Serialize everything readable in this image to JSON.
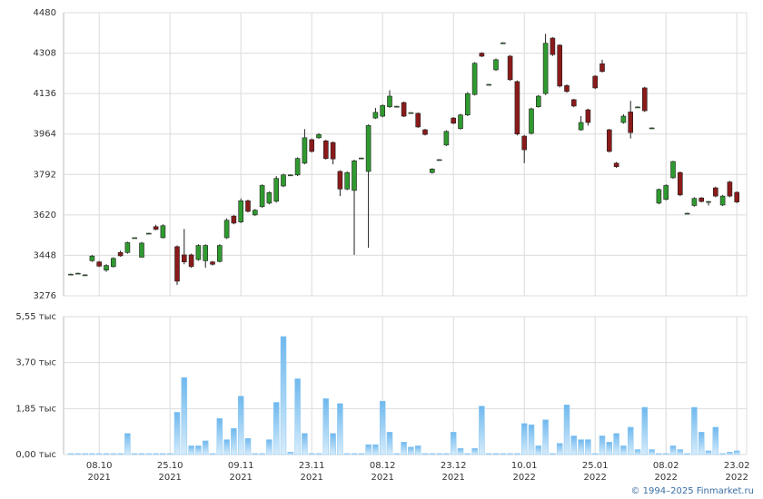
{
  "chart_data": [
    {
      "type": "candlestick",
      "up_color": "#2f9a2f",
      "down_color": "#8b1a1a",
      "ylim": [
        3276,
        4480
      ],
      "yticks": [
        3276,
        3448,
        3620,
        3792,
        3964,
        4136,
        4308,
        4480
      ],
      "grid": true,
      "open": [
        3368,
        3372,
        3365,
        3425,
        3420,
        3385,
        3400,
        3460,
        3460,
        3523,
        3440,
        3542,
        3570,
        3523,
        null,
        3485,
        3450,
        3450,
        3430,
        3425,
        3420,
        3422,
        3523,
        3615,
        3590,
        3680,
        3620,
        3655,
        3670,
        3678,
        3743,
        3790,
        3790,
        3840,
        3940,
        3948,
        3935,
        3928,
        3805,
        3730,
        3724,
        3862,
        3805,
        4032,
        4040,
        4080,
        4082,
        4098,
        4055,
        4052,
        3982,
        3800,
        3855,
        3917,
        4032,
        3987,
        4045,
        4132,
        4308,
        4175,
        4237,
        4352,
        4295,
        4187,
        3955,
        3967,
        4080,
        4136,
        4372,
        4342,
        4170,
        4110,
        3982,
        4067,
        4210,
        4263,
        3982,
        3840,
        4013,
        4058,
        4079,
        4160,
        3990,
        3670,
        3686,
        3778,
        3800,
        3627,
        3660,
        3692,
        3677,
        3735,
        3662,
        3760,
        3716
      ],
      "high": [
        3370,
        3374,
        3367,
        3450,
        3424,
        3410,
        3440,
        3468,
        3506,
        3525,
        3505,
        3544,
        3578,
        3580,
        null,
        3490,
        3560,
        3455,
        3495,
        3495,
        3424,
        3495,
        3605,
        3620,
        3690,
        3685,
        3645,
        3750,
        3720,
        3785,
        3795,
        3792,
        3865,
        3985,
        3945,
        3968,
        3940,
        3932,
        3810,
        3805,
        3855,
        3864,
        4005,
        4075,
        4090,
        4150,
        4084,
        4102,
        4057,
        4056,
        3986,
        3819,
        3857,
        3980,
        4036,
        4050,
        4142,
        4270,
        4312,
        4177,
        4285,
        4354,
        4300,
        4192,
        3960,
        4076,
        4130,
        4390,
        4376,
        4346,
        4175,
        4114,
        4040,
        4072,
        4214,
        4280,
        3986,
        3845,
        4048,
        4105,
        4081,
        4165,
        3992,
        3732,
        3750,
        3850,
        3805,
        3629,
        3695,
        3696,
        3679,
        3740,
        3705,
        3765,
        3720
      ],
      "low": [
        3366,
        3370,
        3363,
        3420,
        3398,
        3378,
        3396,
        3442,
        3455,
        3521,
        3438,
        3540,
        3555,
        3520,
        null,
        3322,
        3410,
        3395,
        3425,
        3395,
        3405,
        3418,
        3518,
        3580,
        3585,
        3630,
        3615,
        3650,
        3665,
        3672,
        3738,
        3788,
        3785,
        3835,
        3885,
        3944,
        3855,
        3835,
        3700,
        3725,
        3450,
        3860,
        3480,
        4028,
        4035,
        4075,
        4080,
        4036,
        4053,
        3990,
        3958,
        3796,
        3853,
        3913,
        4006,
        3983,
        4040,
        4128,
        4291,
        4173,
        4233,
        4350,
        4190,
        3958,
        3840,
        3962,
        4076,
        4130,
        4296,
        4162,
        4140,
        4078,
        3978,
        4000,
        4155,
        4226,
        3885,
        3820,
        4008,
        3945,
        4077,
        4058,
        3988,
        3665,
        3682,
        3774,
        3700,
        3625,
        3655,
        3673,
        3660,
        3695,
        3658,
        3695,
        3670
      ],
      "close": [
        3368,
        3372,
        3365,
        3445,
        3402,
        3405,
        3435,
        3446,
        3502,
        3523,
        3500,
        3542,
        3558,
        3574,
        null,
        3338,
        3420,
        3400,
        3490,
        3490,
        3410,
        3490,
        3597,
        3585,
        3680,
        3635,
        3640,
        3745,
        3715,
        3775,
        3790,
        3790,
        3860,
        3948,
        3890,
        3962,
        3860,
        3858,
        3730,
        3800,
        3850,
        3862,
        4000,
        4056,
        4085,
        4125,
        4082,
        4040,
        4055,
        3994,
        3962,
        3815,
        3855,
        3975,
        4010,
        4045,
        4136,
        4265,
        4295,
        4175,
        4280,
        4352,
        4195,
        3964,
        3897,
        4071,
        4125,
        4350,
        4302,
        4168,
        4145,
        4083,
        4013,
        4013,
        4160,
        4230,
        3890,
        3825,
        4040,
        3970,
        4079,
        4063,
        3990,
        3728,
        3745,
        3847,
        3705,
        3627,
        3690,
        3677,
        3677,
        3700,
        3700,
        3700,
        3675
      ]
    },
    {
      "type": "bar",
      "color": "#8cc8f2",
      "ylim": [
        0,
        5.55
      ],
      "yticks": [
        {
          "value": 0,
          "label": "0,00 тыс"
        },
        {
          "value": 1.85,
          "label": "1,85 тыс"
        },
        {
          "value": 3.7,
          "label": "3,70 тыс"
        },
        {
          "value": 5.55,
          "label": "5,55 тыс"
        }
      ],
      "grid": true,
      "categories": [
        null,
        null,
        null,
        null,
        {
          "date": "08.10",
          "year": "2021"
        },
        null,
        null,
        null,
        null,
        null,
        null,
        null,
        null,
        null,
        {
          "date": "25.10",
          "year": "2021"
        },
        null,
        null,
        null,
        null,
        null,
        null,
        null,
        null,
        null,
        {
          "date": "09.11",
          "year": "2021"
        },
        null,
        null,
        null,
        null,
        null,
        null,
        null,
        null,
        null,
        {
          "date": "23.11",
          "year": "2021"
        },
        null,
        null,
        null,
        null,
        null,
        null,
        null,
        null,
        null,
        {
          "date": "08.12",
          "year": "2021"
        },
        null,
        null,
        null,
        null,
        null,
        null,
        null,
        null,
        null,
        {
          "date": "23.12",
          "year": "2021"
        },
        null,
        null,
        null,
        null,
        null,
        null,
        null,
        null,
        null,
        {
          "date": "10.01",
          "year": "2022"
        },
        null,
        null,
        null,
        null,
        null,
        null,
        null,
        null,
        null,
        {
          "date": "25.01",
          "year": "2022"
        },
        null,
        null,
        null,
        null,
        null,
        null,
        null,
        null,
        null,
        {
          "date": "08.02",
          "year": "2022"
        },
        null,
        null,
        null,
        null,
        null,
        null,
        null,
        null,
        null,
        {
          "date": "23.02",
          "year": "2022"
        }
      ],
      "values": [
        0.04,
        0.04,
        0.04,
        0.04,
        0.04,
        0.04,
        0.04,
        0.04,
        0.85,
        0.04,
        0.04,
        0.04,
        0.04,
        0.04,
        0.04,
        1.7,
        3.1,
        0.35,
        0.35,
        0.55,
        0.04,
        1.45,
        0.6,
        1.05,
        2.35,
        0.65,
        0.04,
        0.04,
        0.6,
        2.1,
        4.75,
        0.1,
        3.05,
        0.85,
        0.04,
        0.04,
        2.25,
        0.85,
        2.05,
        0.04,
        0.04,
        0.04,
        0.4,
        0.4,
        2.15,
        0.9,
        0.04,
        0.5,
        0.3,
        0.35,
        0.04,
        0.04,
        0.04,
        0.04,
        0.9,
        0.25,
        0.04,
        0.25,
        1.95,
        0.04,
        0.04,
        0.04,
        0.04,
        0.04,
        1.25,
        1.2,
        0.35,
        1.4,
        0.04,
        0.45,
        2.0,
        0.75,
        0.6,
        0.6,
        0.04,
        0.75,
        0.5,
        0.85,
        0.35,
        1.1,
        0.2,
        1.9,
        0.2,
        0.04,
        0.04,
        0.35,
        0.2,
        0.04,
        1.9,
        0.9,
        0.15,
        1.1,
        0.04,
        0.1,
        0.15
      ]
    }
  ],
  "credit": "© 1994–2025 Finmarket.ru"
}
